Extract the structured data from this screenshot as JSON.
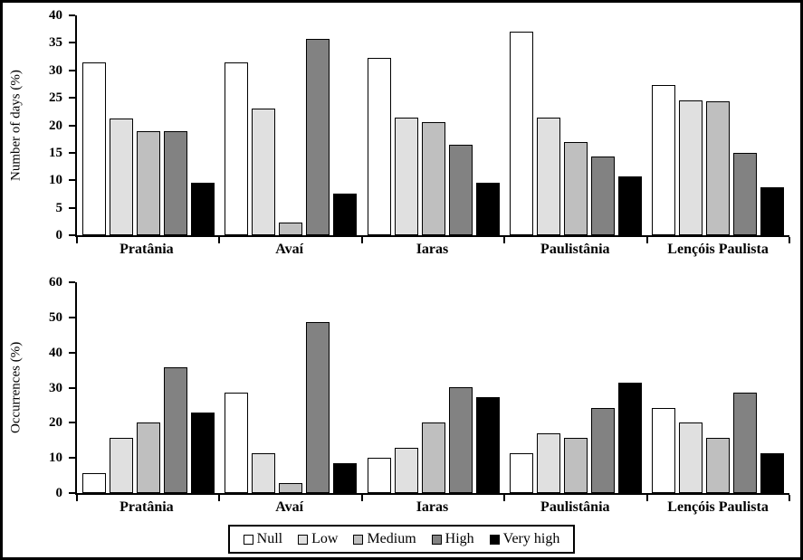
{
  "figure": {
    "background": "#ffffff",
    "border_color": "#000000"
  },
  "legend": {
    "items": [
      {
        "label": "Null",
        "color": "#ffffff"
      },
      {
        "label": "Low",
        "color": "#e0e0e0"
      },
      {
        "label": "Medium",
        "color": "#bfbfbf"
      },
      {
        "label": "High",
        "color": "#828282"
      },
      {
        "label": "Very high",
        "color": "#000000"
      }
    ]
  },
  "chart_data": [
    {
      "type": "bar",
      "title": "",
      "ylabel": "Number of days (%)",
      "xlabel": "",
      "ylim": [
        0,
        40
      ],
      "yticks": [
        0,
        5,
        10,
        15,
        20,
        25,
        30,
        35,
        40
      ],
      "grid": false,
      "legend_position": "shared-bottom",
      "categories": [
        "Pratânia",
        "Avaí",
        "Iaras",
        "Paulistânia",
        "Lençóis Paulista"
      ],
      "series": [
        {
          "name": "Null",
          "color": "#ffffff",
          "values": [
            31.4,
            31.4,
            32.3,
            37.0,
            27.4
          ]
        },
        {
          "name": "Low",
          "color": "#e0e0e0",
          "values": [
            21.3,
            23.1,
            21.4,
            21.4,
            24.6
          ]
        },
        {
          "name": "Medium",
          "color": "#bfbfbf",
          "values": [
            18.9,
            2.3,
            20.5,
            16.9,
            24.3
          ]
        },
        {
          "name": "High",
          "color": "#828282",
          "values": [
            19.0,
            35.8,
            16.4,
            14.4,
            14.9
          ]
        },
        {
          "name": "Very high",
          "color": "#000000",
          "values": [
            9.5,
            7.5,
            9.5,
            10.7,
            8.7
          ]
        }
      ]
    },
    {
      "type": "bar",
      "title": "",
      "ylabel": "Occurrences (%)",
      "xlabel": "",
      "ylim": [
        0,
        60
      ],
      "yticks": [
        0,
        10,
        20,
        30,
        40,
        50,
        60
      ],
      "grid": false,
      "legend_position": "shared-bottom",
      "categories": [
        "Pratânia",
        "Avaí",
        "Iaras",
        "Paulistânia",
        "Lençóis Paulista"
      ],
      "series": [
        {
          "name": "Null",
          "color": "#ffffff",
          "values": [
            5.7,
            28.5,
            10.0,
            11.4,
            24.3
          ]
        },
        {
          "name": "Low",
          "color": "#e0e0e0",
          "values": [
            15.7,
            11.4,
            12.8,
            17.1,
            20.0
          ]
        },
        {
          "name": "Medium",
          "color": "#bfbfbf",
          "values": [
            20.0,
            2.9,
            20.0,
            15.7,
            15.7
          ]
        },
        {
          "name": "High",
          "color": "#828282",
          "values": [
            35.7,
            48.6,
            30.0,
            24.3,
            28.6
          ]
        },
        {
          "name": "Very high",
          "color": "#000000",
          "values": [
            22.8,
            8.6,
            27.2,
            31.4,
            11.4
          ]
        }
      ]
    }
  ]
}
